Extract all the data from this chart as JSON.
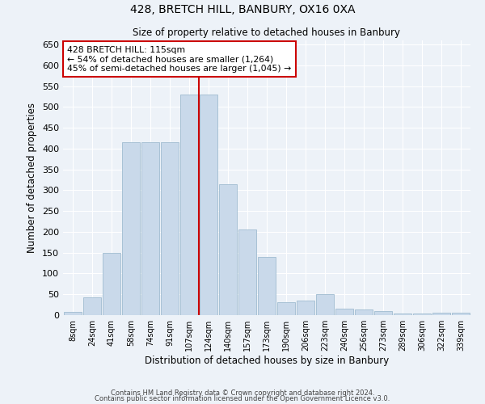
{
  "title": "428, BRETCH HILL, BANBURY, OX16 0XA",
  "subtitle": "Size of property relative to detached houses in Banbury",
  "xlabel": "Distribution of detached houses by size in Banbury",
  "ylabel": "Number of detached properties",
  "categories": [
    "8sqm",
    "24sqm",
    "41sqm",
    "58sqm",
    "74sqm",
    "91sqm",
    "107sqm",
    "124sqm",
    "140sqm",
    "157sqm",
    "173sqm",
    "190sqm",
    "206sqm",
    "223sqm",
    "240sqm",
    "256sqm",
    "273sqm",
    "289sqm",
    "306sqm",
    "322sqm",
    "339sqm"
  ],
  "values": [
    8,
    42,
    150,
    415,
    415,
    415,
    530,
    530,
    315,
    205,
    140,
    32,
    35,
    50,
    15,
    13,
    10,
    4,
    3,
    5,
    5
  ],
  "bar_color": "#c9d9ea",
  "bar_edge_color": "#a0bcd0",
  "vline_color": "#cc0000",
  "annotation_text": "428 BRETCH HILL: 115sqm\n← 54% of detached houses are smaller (1,264)\n45% of semi-detached houses are larger (1,045) →",
  "annotation_box_color": "#ffffff",
  "annotation_box_edge": "#cc0000",
  "ylim": [
    0,
    660
  ],
  "yticks": [
    0,
    50,
    100,
    150,
    200,
    250,
    300,
    350,
    400,
    450,
    500,
    550,
    600,
    650
  ],
  "footer1": "Contains HM Land Registry data © Crown copyright and database right 2024.",
  "footer2": "Contains public sector information licensed under the Open Government Licence v3.0.",
  "bg_color": "#edf2f8",
  "plot_bg_color": "#edf2f8"
}
